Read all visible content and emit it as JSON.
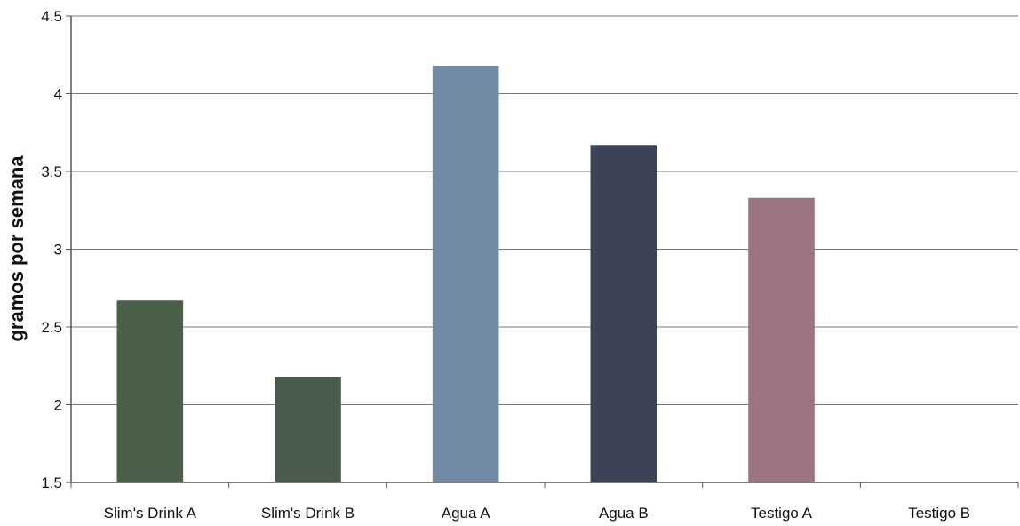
{
  "chart_data": {
    "type": "bar",
    "title": "",
    "xlabel": "",
    "ylabel": "gramos por semana",
    "categories": [
      "Slim's Drink A",
      "Slim's Drink B",
      "Agua A",
      "Agua B",
      "Testigo A",
      "Testigo B"
    ],
    "values": [
      2.67,
      2.18,
      4.18,
      3.67,
      3.33,
      null
    ],
    "bar_colors": [
      "#4a6048",
      "#495c4b",
      "#7089a5",
      "#3d4356",
      "#9c7382",
      null
    ],
    "ylim": [
      1.5,
      4.5
    ],
    "yticks": [
      "1.5",
      "2",
      "2.5",
      "3",
      "3.5",
      "4",
      "4.5"
    ],
    "ytick_values": [
      1.5,
      2,
      2.5,
      3,
      3.5,
      4,
      4.5
    ],
    "grid": true,
    "legend": "none"
  }
}
